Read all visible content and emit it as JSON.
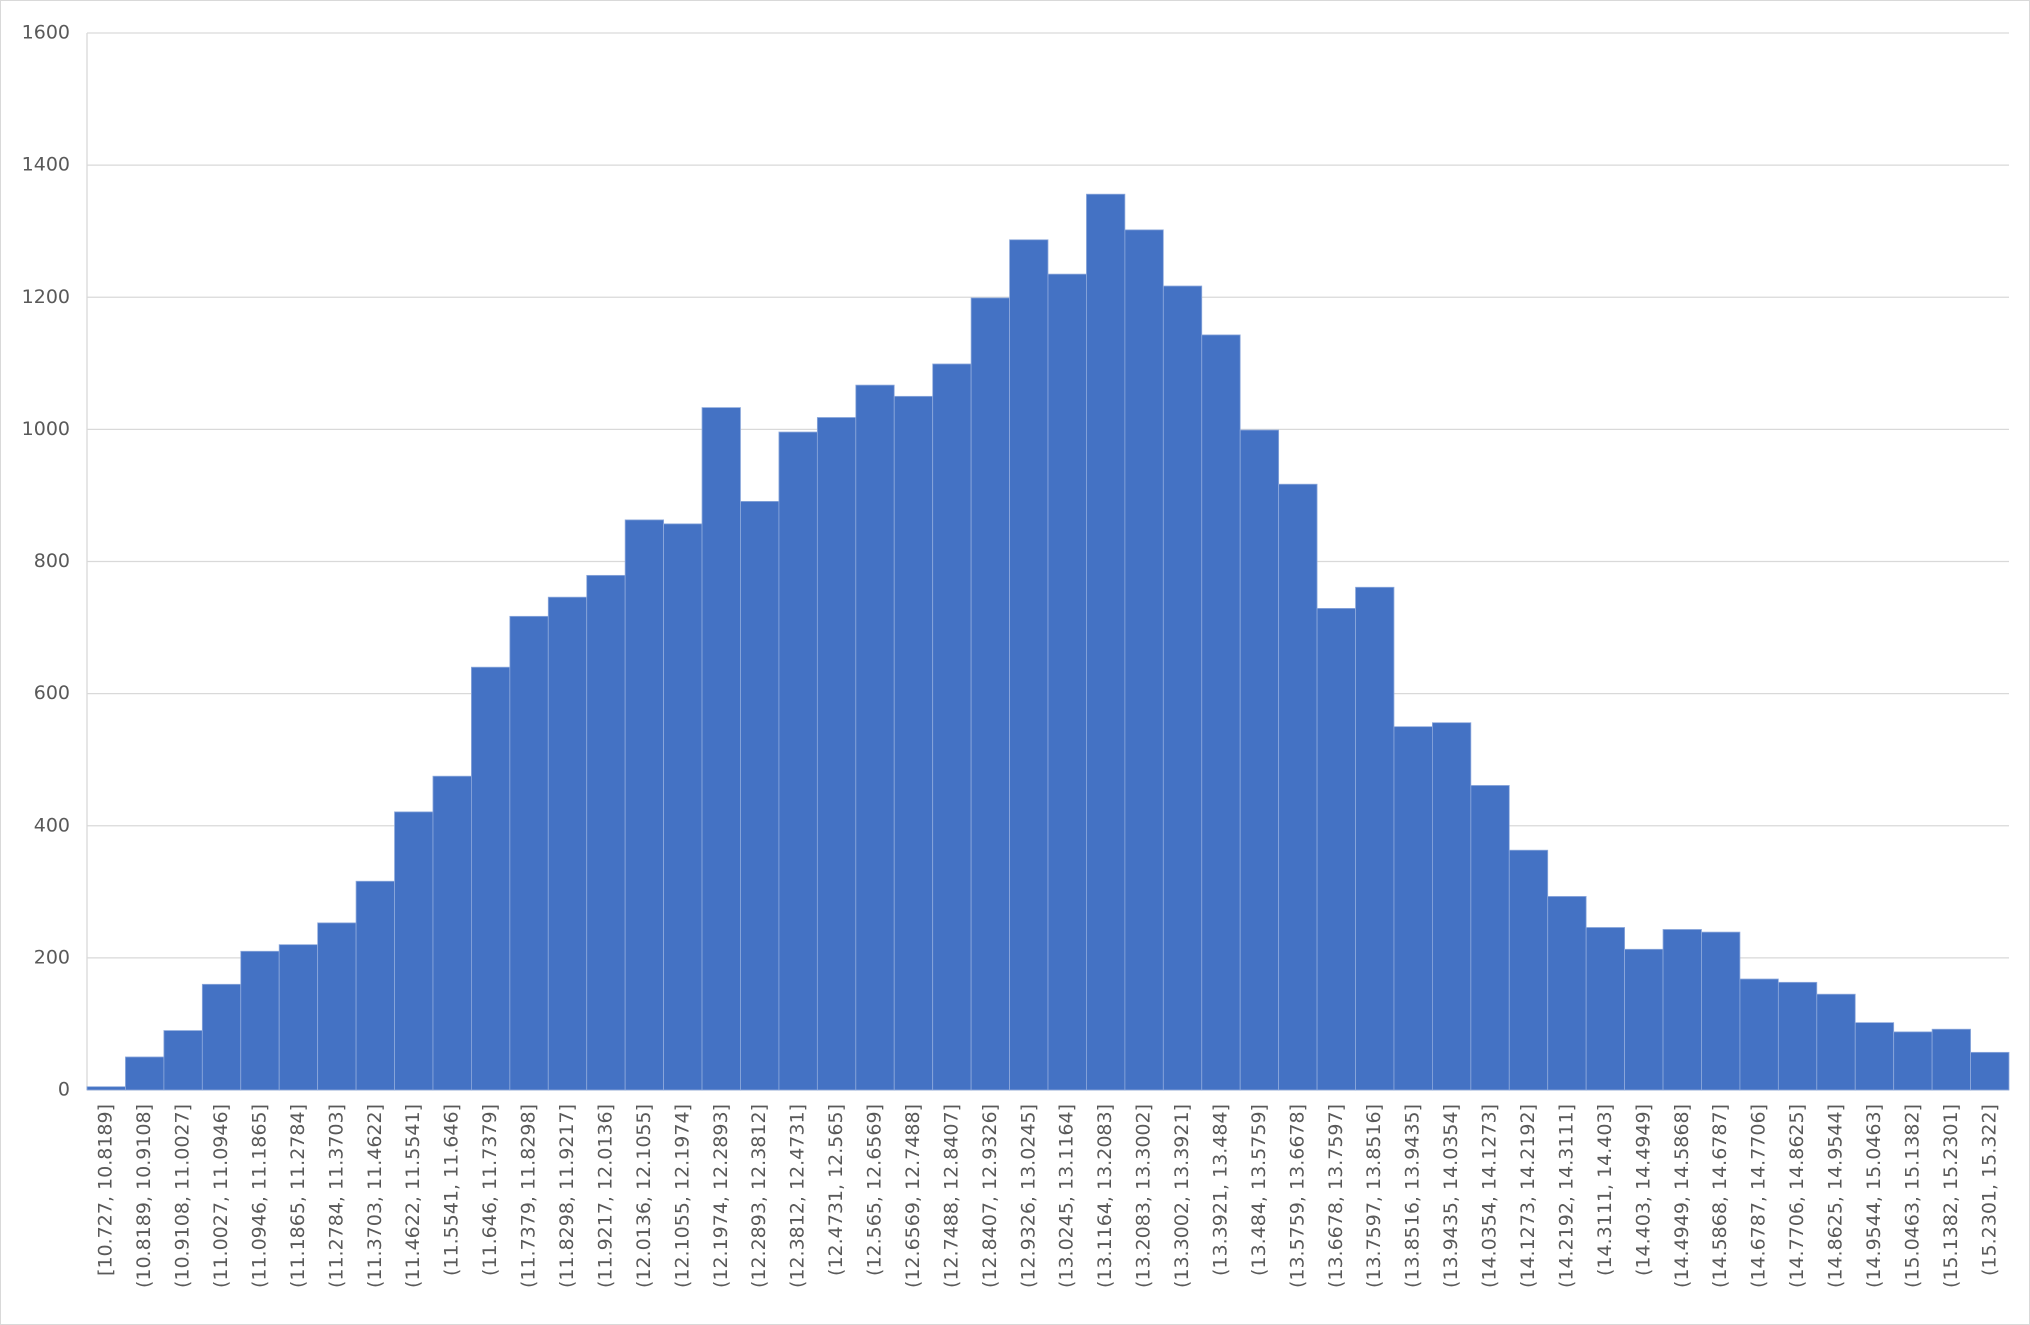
{
  "chart_data": {
    "type": "bar",
    "color": "#4472c4",
    "grid": true,
    "categories": [
      "[10.727, 10.8189]",
      "(10.8189, 10.9108]",
      "(10.9108, 11.0027]",
      "(11.0027, 11.0946]",
      "(11.0946, 11.1865]",
      "(11.1865, 11.2784]",
      "(11.2784, 11.3703]",
      "(11.3703, 11.4622]",
      "(11.4622, 11.5541]",
      "(11.5541, 11.646]",
      "(11.646, 11.7379]",
      "(11.7379, 11.8298]",
      "(11.8298, 11.9217]",
      "(11.9217, 12.0136]",
      "(12.0136, 12.1055]",
      "(12.1055, 12.1974]",
      "(12.1974, 12.2893]",
      "(12.2893, 12.3812]",
      "(12.3812, 12.4731]",
      "(12.4731, 12.565]",
      "(12.565, 12.6569]",
      "(12.6569, 12.7488]",
      "(12.7488, 12.8407]",
      "(12.8407, 12.9326]",
      "(12.9326, 13.0245]",
      "(13.0245, 13.1164]",
      "(13.1164, 13.2083]",
      "(13.2083, 13.3002]",
      "(13.3002, 13.3921]",
      "(13.3921, 13.484]",
      "(13.484, 13.5759]",
      "(13.5759, 13.6678]",
      "(13.6678, 13.7597]",
      "(13.7597, 13.8516]",
      "(13.8516, 13.9435]",
      "(13.9435, 14.0354]",
      "(14.0354, 14.1273]",
      "(14.1273, 14.2192]",
      "(14.2192, 14.3111]",
      "(14.3111, 14.403]",
      "(14.403, 14.4949]",
      "(14.4949, 14.5868]",
      "(14.5868, 14.6787]",
      "(14.6787, 14.7706]",
      "(14.7706, 14.8625]",
      "(14.8625, 14.9544]",
      "(14.9544, 15.0463]",
      "(15.0463, 15.1382]",
      "(15.1382, 15.2301]",
      "(15.2301, 15.322]"
    ],
    "values": [
      5,
      50,
      90,
      160,
      210,
      220,
      253,
      316,
      421,
      475,
      640,
      717,
      746,
      779,
      863,
      857,
      1033,
      891,
      996,
      1018,
      1067,
      1050,
      1099,
      1199,
      1287,
      1235,
      1356,
      1302,
      1217,
      1143,
      999,
      917,
      729,
      761,
      550,
      556,
      461,
      363,
      293,
      246,
      213,
      243,
      239,
      168,
      163,
      145,
      102,
      88,
      92,
      57
    ],
    "ylim": [
      0,
      1600
    ],
    "yticks": [
      0,
      200,
      400,
      600,
      800,
      1000,
      1200,
      1400,
      1600
    ]
  }
}
